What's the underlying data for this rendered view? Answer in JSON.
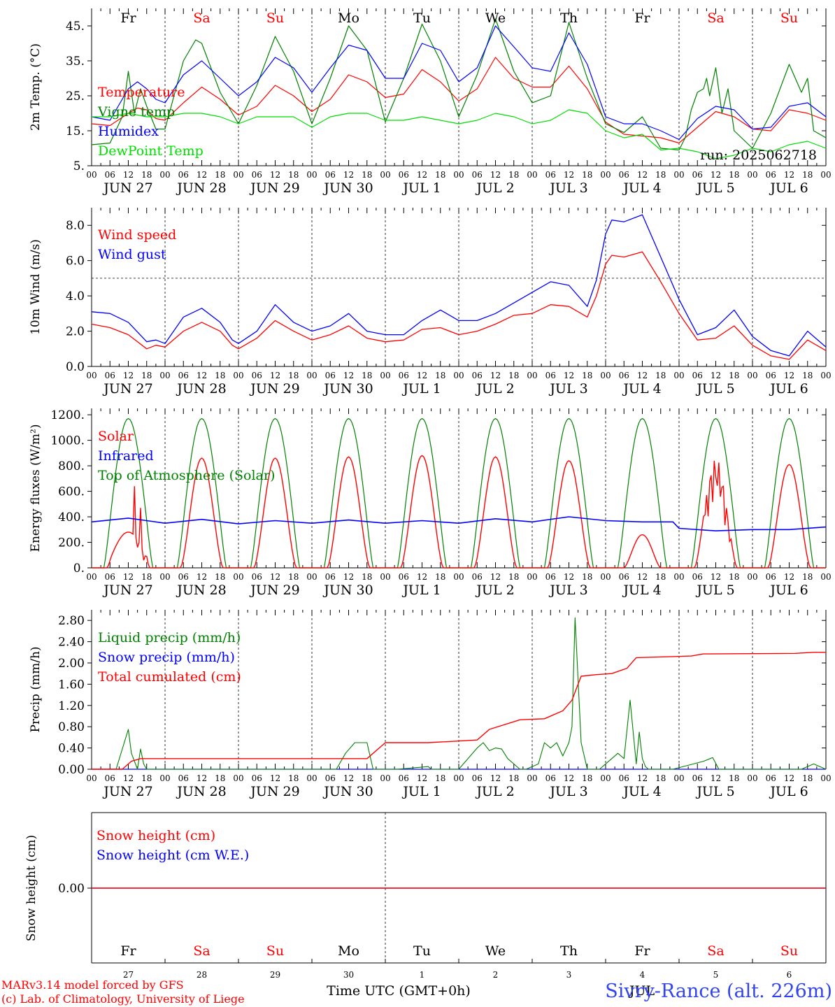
{
  "colors": {
    "red": "#ff0000",
    "green": "#008000",
    "blue": "#0000ff",
    "lime": "#00dd00",
    "black": "#000000"
  },
  "days": {
    "weekdays": [
      "Fr",
      "Sa",
      "Su",
      "Mo",
      "Tu",
      "We",
      "Th",
      "Fr",
      "Sa",
      "Su"
    ],
    "weekend": [
      false,
      true,
      true,
      false,
      false,
      false,
      false,
      false,
      true,
      true
    ],
    "dates": [
      "JUN 27",
      "JUN 28",
      "JUN 29",
      "JUN 30",
      "JUL  1",
      "JUL  2",
      "JUL  3",
      "JUL  4",
      "JUL  5",
      "JUL  6"
    ],
    "short_dates": [
      "27",
      "28",
      "29",
      "30",
      "1",
      "2",
      "3",
      "4",
      "5",
      "6"
    ],
    "hour_ticks": [
      "00",
      "06",
      "12",
      "18"
    ],
    "end_tick": "00"
  },
  "run_label": "run: 2025062718",
  "footer": {
    "credit_1": "MARv3.14 model forced by GFS",
    "credit_2": "(c) Lab. of Climatology, University of Liege",
    "xlabel": "Time UTC (GMT+0h)",
    "month_label": "JUL",
    "station": "Sivry-Rance (alt. 226m)"
  },
  "chart_data": [
    {
      "type": "line",
      "ylabel": "2m Temp. (°C)",
      "ylim": [
        5,
        50
      ],
      "ticks": [
        {
          "v": 5,
          "l": "5."
        },
        {
          "v": 15,
          "l": "15."
        },
        {
          "v": 25,
          "l": "25."
        },
        {
          "v": 35,
          "l": "35."
        },
        {
          "v": 45,
          "l": "45."
        }
      ],
      "x_unit": "hours since 2025-06-27 00 UTC",
      "series": [
        {
          "name": "Temperature",
          "color": "red",
          "x": [
            0,
            6,
            12,
            15,
            18,
            21,
            24,
            30,
            36,
            42,
            48,
            54,
            60,
            66,
            72,
            78,
            84,
            90,
            96,
            102,
            108,
            114,
            120,
            126,
            132,
            138,
            144,
            150,
            156,
            162,
            168,
            174,
            180,
            186,
            192,
            198,
            204,
            210,
            216,
            222,
            228,
            234,
            240
          ],
          "y": [
            17,
            16.5,
            20,
            21.5,
            21,
            18.5,
            18,
            23,
            27.5,
            24,
            19.5,
            22,
            28,
            25,
            20.5,
            24,
            31,
            29,
            24.5,
            25.5,
            32.5,
            29,
            23.5,
            27,
            36,
            30,
            27.5,
            27.5,
            33.5,
            27,
            17.5,
            14,
            13.5,
            13,
            11.5,
            16,
            20.5,
            19,
            15.5,
            15,
            21,
            20,
            18
          ]
        },
        {
          "name": "Vigne temp",
          "color": "green",
          "x": [
            0,
            6,
            10,
            12,
            14,
            16,
            18,
            21,
            24,
            30,
            34,
            36,
            42,
            48,
            54,
            60,
            66,
            72,
            78,
            84,
            90,
            96,
            102,
            108,
            114,
            120,
            126,
            132,
            138,
            144,
            150,
            156,
            162,
            168,
            174,
            180,
            186,
            192,
            194,
            196,
            198,
            200,
            201,
            202,
            204,
            206,
            208,
            210,
            216,
            222,
            228,
            232,
            234,
            236,
            240
          ],
          "y": [
            11,
            11.5,
            19,
            32,
            20,
            27,
            22,
            15.5,
            15.5,
            35,
            41,
            40,
            26,
            17,
            28,
            42,
            32,
            17,
            30,
            45,
            38,
            17.5,
            30,
            45.5,
            35,
            19,
            31,
            47,
            32,
            23,
            25,
            46,
            30,
            17,
            14.5,
            19,
            10,
            9.5,
            13,
            21,
            26,
            27,
            30,
            25,
            33,
            20,
            27,
            15,
            10,
            20,
            34,
            26,
            30,
            15,
            13
          ]
        },
        {
          "name": "Humidex",
          "color": "blue",
          "x": [
            0,
            6,
            12,
            15,
            18,
            21,
            24,
            30,
            36,
            42,
            48,
            54,
            60,
            66,
            72,
            78,
            84,
            90,
            96,
            102,
            108,
            114,
            120,
            126,
            132,
            138,
            144,
            150,
            156,
            162,
            168,
            174,
            180,
            186,
            192,
            198,
            204,
            210,
            216,
            222,
            228,
            234,
            240
          ],
          "y": [
            19,
            18,
            27,
            29,
            27,
            24,
            23,
            31,
            35,
            30,
            25,
            29,
            36,
            33,
            26,
            33,
            39.5,
            38,
            30,
            30,
            40,
            38,
            29,
            33,
            45,
            39,
            33,
            32,
            43,
            34,
            19,
            17,
            17,
            15,
            12.5,
            18.5,
            22,
            21,
            15.5,
            16,
            22,
            23,
            19
          ]
        },
        {
          "name": "DewPoint Temp",
          "color": "lime",
          "x": [
            0,
            6,
            12,
            18,
            24,
            30,
            36,
            42,
            48,
            54,
            60,
            66,
            72,
            78,
            84,
            90,
            96,
            102,
            108,
            114,
            120,
            126,
            132,
            138,
            144,
            150,
            156,
            162,
            168,
            174,
            180,
            186,
            192,
            198,
            204,
            210,
            216,
            222,
            228,
            234,
            240
          ],
          "y": [
            19,
            19,
            20,
            19,
            19,
            20,
            20,
            19,
            17,
            19,
            19,
            19,
            16,
            19,
            20,
            20,
            18,
            18,
            19,
            18,
            17,
            18,
            20,
            19,
            17,
            18,
            21,
            20,
            15,
            13,
            14,
            9.5,
            10,
            9,
            7,
            8,
            10,
            9,
            11,
            12,
            10
          ]
        }
      ]
    },
    {
      "type": "line",
      "ylabel": "10m Wind (m/s)",
      "ylim": [
        0,
        9
      ],
      "ticks": [
        {
          "v": 0,
          "l": "0.0"
        },
        {
          "v": 2,
          "l": "2.0"
        },
        {
          "v": 4,
          "l": "4.0"
        },
        {
          "v": 6,
          "l": "6.0"
        },
        {
          "v": 8,
          "l": "8.0"
        }
      ],
      "ref_line": 5,
      "x_unit": "hours since 2025-06-27 00 UTC",
      "series": [
        {
          "name": "Wind speed",
          "color": "red",
          "x": [
            0,
            6,
            12,
            18,
            21,
            24,
            30,
            36,
            42,
            46,
            48,
            54,
            60,
            66,
            72,
            78,
            84,
            90,
            96,
            102,
            108,
            114,
            120,
            126,
            132,
            138,
            144,
            150,
            156,
            162,
            165,
            168,
            170,
            174,
            180,
            186,
            192,
            198,
            204,
            210,
            216,
            222,
            228,
            234,
            240
          ],
          "y": [
            2.4,
            2.2,
            1.8,
            1.0,
            1.2,
            1.1,
            2.0,
            2.5,
            2.0,
            1.2,
            1.0,
            1.6,
            2.6,
            2.0,
            1.5,
            1.8,
            2.3,
            1.6,
            1.4,
            1.5,
            2.1,
            2.2,
            1.8,
            2.0,
            2.4,
            2.9,
            3.0,
            3.5,
            3.4,
            2.8,
            4.0,
            5.8,
            6.3,
            6.2,
            6.5,
            4.8,
            3.0,
            1.5,
            1.6,
            2.3,
            1.2,
            0.6,
            0.4,
            1.5,
            0.9
          ]
        },
        {
          "name": "Wind gust",
          "color": "blue",
          "x": [
            0,
            6,
            12,
            18,
            21,
            24,
            30,
            36,
            42,
            46,
            48,
            54,
            60,
            66,
            72,
            78,
            84,
            90,
            96,
            102,
            108,
            114,
            120,
            126,
            132,
            138,
            144,
            150,
            156,
            162,
            165,
            168,
            170,
            174,
            180,
            186,
            192,
            198,
            204,
            210,
            216,
            222,
            228,
            234,
            240
          ],
          "y": [
            3.1,
            3.0,
            2.5,
            1.4,
            1.5,
            1.3,
            2.8,
            3.3,
            2.5,
            1.5,
            1.3,
            2.0,
            3.5,
            2.5,
            2.0,
            2.3,
            3.0,
            2.0,
            1.8,
            1.8,
            2.6,
            3.2,
            2.6,
            2.6,
            3.0,
            3.6,
            4.2,
            4.8,
            4.6,
            3.4,
            4.9,
            7.5,
            8.3,
            8.2,
            8.6,
            6.2,
            3.8,
            1.8,
            2.2,
            3.2,
            1.7,
            0.9,
            0.6,
            2.0,
            1.1
          ]
        }
      ]
    },
    {
      "type": "line",
      "ylabel": "Energy fluxes (W/m²)",
      "ylim": [
        0,
        1250
      ],
      "ticks": [
        {
          "v": 0,
          "l": "0."
        },
        {
          "v": 200,
          "l": "200."
        },
        {
          "v": 400,
          "l": "400."
        },
        {
          "v": 600,
          "l": "600."
        },
        {
          "v": 800,
          "l": "800."
        },
        {
          "v": 1000,
          "l": "1000."
        },
        {
          "v": 1200,
          "l": "1200."
        }
      ],
      "x_unit": "hours since 2025-06-27 00 UTC",
      "series": [
        {
          "name": "Solar",
          "color": "red",
          "peaks": [
            650,
            860,
            860,
            870,
            880,
            870,
            840,
            260,
            860,
            810
          ]
        },
        {
          "name": "Infrared",
          "color": "blue",
          "x": [
            0,
            12,
            18,
            24,
            36,
            48,
            60,
            72,
            84,
            96,
            108,
            120,
            132,
            144,
            156,
            168,
            180,
            190,
            192,
            204,
            216,
            228,
            240
          ],
          "y": [
            360,
            390,
            370,
            350,
            380,
            345,
            370,
            350,
            375,
            350,
            370,
            350,
            385,
            360,
            400,
            370,
            360,
            360,
            310,
            290,
            300,
            300,
            320
          ]
        },
        {
          "name": "Top of Atmosphere (Solar)",
          "color": "green",
          "peak": 1170
        }
      ]
    },
    {
      "type": "line",
      "ylabel": "Precip (mm/h)",
      "ylim": [
        0,
        3.0
      ],
      "ticks": [
        {
          "v": 0,
          "l": "0.00"
        },
        {
          "v": 0.4,
          "l": "0.40"
        },
        {
          "v": 0.8,
          "l": "0.80"
        },
        {
          "v": 1.2,
          "l": "1.20"
        },
        {
          "v": 1.6,
          "l": "1.60"
        },
        {
          "v": 2.0,
          "l": "2.00"
        },
        {
          "v": 2.4,
          "l": "2.40"
        },
        {
          "v": 2.8,
          "l": "2.80"
        }
      ],
      "x_unit": "hours since 2025-06-27 00 UTC",
      "series": [
        {
          "name": "Liquid precip (mm/h)",
          "color": "green",
          "x": [
            0,
            8,
            12,
            13,
            15,
            16,
            17,
            18,
            20,
            80,
            83,
            86,
            89,
            90,
            92,
            100,
            110,
            111,
            112,
            120,
            126,
            128,
            130,
            132,
            134,
            136,
            140,
            142,
            146,
            148,
            150,
            152,
            154,
            156,
            157,
            158,
            160,
            162,
            166,
            168,
            172,
            174,
            176,
            178,
            179,
            180,
            181,
            182,
            184,
            190,
            200,
            203,
            205,
            208,
            232,
            236,
            240
          ],
          "y": [
            0,
            0,
            0.75,
            0.3,
            0,
            0.38,
            0.1,
            0,
            0,
            0,
            0.3,
            0.5,
            0.5,
            0.5,
            0,
            0,
            0.05,
            0,
            0,
            0,
            0.4,
            0.5,
            0.35,
            0.4,
            0.38,
            0.2,
            0,
            0,
            0.1,
            0.5,
            0.4,
            0.5,
            0.25,
            0.5,
            0.8,
            2.85,
            0.5,
            0,
            0,
            0.1,
            0.3,
            0.2,
            1.3,
            0.1,
            0.7,
            0.2,
            0.05,
            0,
            0,
            0,
            0.15,
            0.22,
            0,
            0,
            0,
            0.1,
            0
          ]
        },
        {
          "name": "Snow precip (mm/h)",
          "color": "blue",
          "x": [
            0,
            240
          ],
          "y": [
            0,
            0
          ]
        },
        {
          "name": "Total cumulated (cm)",
          "color": "red",
          "x": [
            0,
            10,
            13,
            16,
            90,
            96,
            110,
            126,
            130,
            140,
            148,
            154,
            157,
            160,
            165,
            170,
            175,
            178,
            190,
            196,
            200,
            230,
            236,
            240
          ],
          "y": [
            0,
            0,
            0.15,
            0.2,
            0.2,
            0.5,
            0.5,
            0.55,
            0.75,
            0.93,
            0.95,
            1.1,
            1.3,
            1.75,
            1.78,
            1.8,
            1.9,
            2.1,
            2.12,
            2.13,
            2.17,
            2.18,
            2.2,
            2.2
          ]
        }
      ]
    },
    {
      "type": "line",
      "ylabel": "Snow height (cm)",
      "ylim": [
        -1,
        1
      ],
      "ticks": [
        {
          "v": 0,
          "l": "0.00"
        }
      ],
      "x_unit": "hours since 2025-06-27 00 UTC",
      "series": [
        {
          "name": "Snow height (cm)",
          "color": "red",
          "x": [
            0,
            240
          ],
          "y": [
            0,
            0
          ]
        },
        {
          "name": "Snow height (cm W.E.)",
          "color": "blue",
          "x": [
            0,
            240
          ],
          "y": [
            0,
            0
          ]
        }
      ]
    }
  ]
}
